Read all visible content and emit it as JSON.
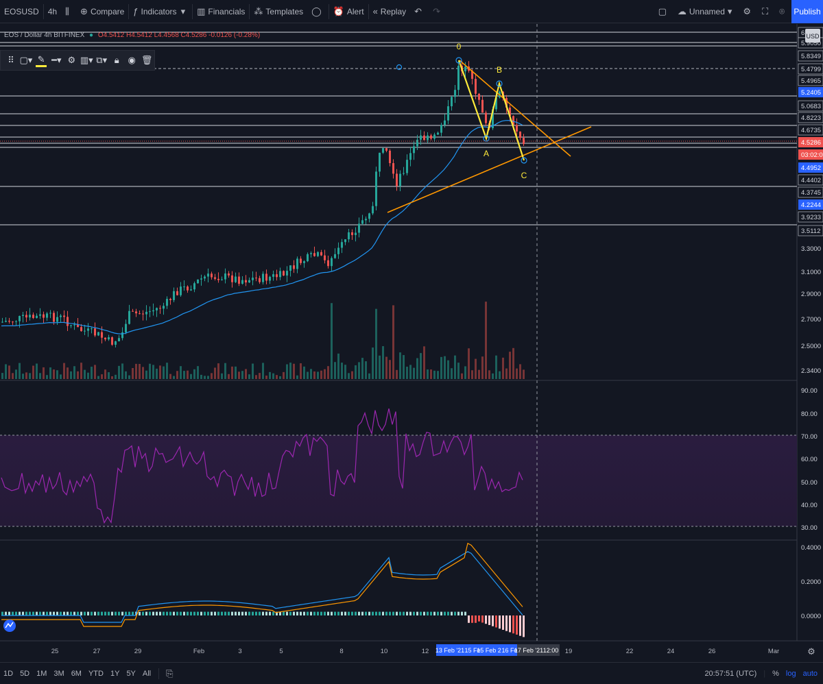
{
  "toolbar": {
    "symbol": "EOSUSD",
    "interval": "4h",
    "compare": "Compare",
    "indicators": "Indicators",
    "financials": "Financials",
    "templates": "Templates",
    "alert": "Alert",
    "replay": "Replay",
    "layout_name": "Unnamed",
    "publish": "Publish"
  },
  "legend": {
    "title": "EOS / Dollar 4h BITFINEX",
    "ohlc": "O4.5412 H4.5412 L4.4568 C4.5286 -0.0126 (-0.28%)"
  },
  "price_axis": {
    "currency": "USD",
    "labels": [
      "6.0",
      "5.9050",
      "5.8349",
      "5.4799",
      "5.4965",
      "5.2405",
      "5.0683",
      "4.8223",
      "4.6735",
      "4.5286",
      "03:02:09",
      "4.4952",
      "4.4402",
      "4.3745",
      "4.2244",
      "3.9233",
      "3.5112",
      "3.3000",
      "3.1000",
      "2.9000",
      "2.7000",
      "2.5000",
      "2.3400"
    ],
    "highlight": {
      "5.2405": "#2962ff",
      "4.5286": "#ef5350",
      "03:02:09": "#ef5350",
      "4.4952": "#2962ff",
      "4.2244": "#2962ff"
    }
  },
  "rsi_axis": [
    "90.00",
    "80.00",
    "70.00",
    "60.00",
    "50.00",
    "40.00",
    "30.00"
  ],
  "macd_axis": [
    "0.4000",
    "0.2000",
    "0.0000"
  ],
  "time_axis": {
    "labels": [
      "25",
      "27",
      "29",
      "Feb",
      "3",
      "5",
      "8",
      "10",
      "12",
      "19",
      "22",
      "24",
      "26",
      "Mar"
    ],
    "highlight": [
      "13 Feb '21",
      "15 Fe",
      "15 Feb 2",
      "16 Fe"
    ],
    "cursor": "17 Feb '21",
    "cursor_time": "12:00"
  },
  "pattern": {
    "points": [
      "0",
      "A",
      "B",
      "C"
    ]
  },
  "bottom": {
    "ranges": [
      "1D",
      "5D",
      "1M",
      "3M",
      "6M",
      "YTD",
      "1Y",
      "5Y",
      "All"
    ],
    "clock": "20:57:51 (UTC)",
    "percent": "%",
    "log": "log",
    "auto": "auto"
  },
  "colors": {
    "up": "#26a69a",
    "down": "#ef5350",
    "ma": "#2196f3",
    "pattern": "#ffeb3b",
    "trend": "#ff9800",
    "rsi": "#9c27b0",
    "accent": "#2962ff"
  }
}
